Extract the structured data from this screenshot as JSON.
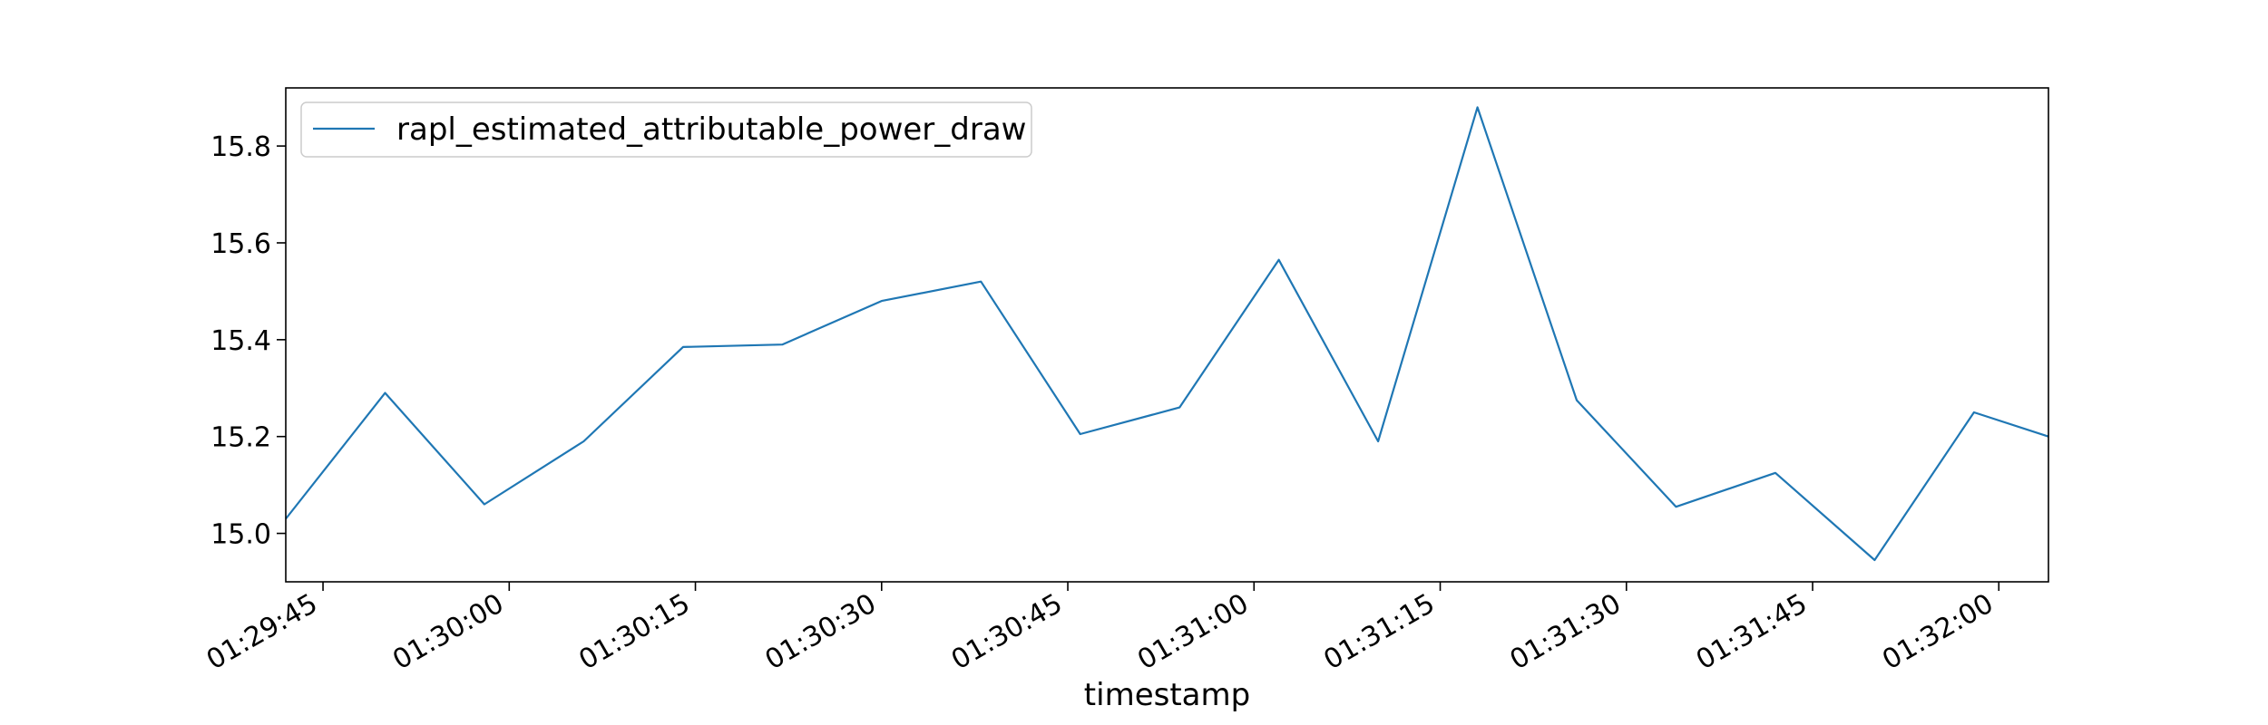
{
  "chart_data": {
    "type": "line",
    "title": "",
    "xlabel": "timestamp",
    "ylabel": "",
    "x_start": "01:29:42",
    "x_end": "01:32:04",
    "x": [
      "01:29:42",
      "01:29:50",
      "01:29:58",
      "01:30:06",
      "01:30:14",
      "01:30:22",
      "01:30:30",
      "01:30:38",
      "01:30:46",
      "01:30:54",
      "01:31:02",
      "01:31:10",
      "01:31:18",
      "01:31:26",
      "01:31:34",
      "01:31:42",
      "01:31:50",
      "01:31:58",
      "01:32:04"
    ],
    "series": [
      {
        "name": "rapl_estimated_attributable_power_draw",
        "color": "#1f77b4",
        "values": [
          15.03,
          15.29,
          15.06,
          15.19,
          15.385,
          15.39,
          15.48,
          15.52,
          15.205,
          15.26,
          15.565,
          15.19,
          15.88,
          15.275,
          15.055,
          15.125,
          14.945,
          15.25,
          15.2
        ]
      }
    ],
    "ylim": [
      14.9,
      15.92
    ],
    "yticks": [
      "15.0",
      "15.2",
      "15.4",
      "15.6",
      "15.8"
    ],
    "xticks": [
      "01:29:45",
      "01:30:00",
      "01:30:15",
      "01:30:30",
      "01:30:45",
      "01:31:00",
      "01:31:15",
      "01:31:30",
      "01:31:45",
      "01:32:00"
    ],
    "legend_position": "top-left",
    "grid": false
  }
}
